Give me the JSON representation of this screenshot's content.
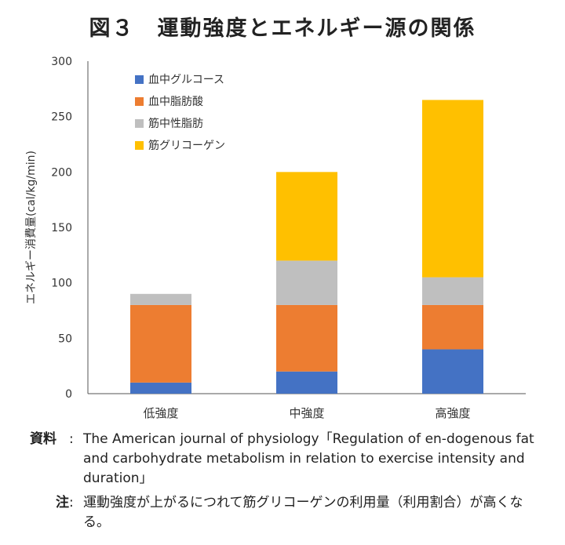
{
  "title": "図３　運動強度とエネルギー源の関係",
  "chart_data": {
    "type": "bar",
    "stacked": true,
    "categories": [
      "低強度",
      "中強度",
      "高強度"
    ],
    "series": [
      {
        "name": "血中グルコース",
        "color": "#4472C4",
        "values": [
          10,
          20,
          40
        ]
      },
      {
        "name": "血中脂肪酸",
        "color": "#ED7D31",
        "values": [
          70,
          60,
          40
        ]
      },
      {
        "name": "筋中性脂肪",
        "color": "#BFBFBF",
        "values": [
          10,
          40,
          25
        ]
      },
      {
        "name": "筋グリコーゲン",
        "color": "#FFC000",
        "values": [
          0,
          80,
          160
        ]
      }
    ],
    "ylabel": "エネルギー消費量(cal/kg/min)",
    "ylim": [
      0,
      300
    ],
    "yticks": [
      0,
      50,
      100,
      150,
      200,
      250,
      300
    ],
    "grid": false,
    "legend": "top-left"
  },
  "source": {
    "label": "資料",
    "text": "The American journal of physiology「Regulation of en-dogenous fat and carbohydrate metabolism in relation to exercise intensity and duration」"
  },
  "note": {
    "label": "注",
    "text": "運動強度が上がるにつれて筋グリコーゲンの利用量（利用割合）が高くなる。"
  }
}
